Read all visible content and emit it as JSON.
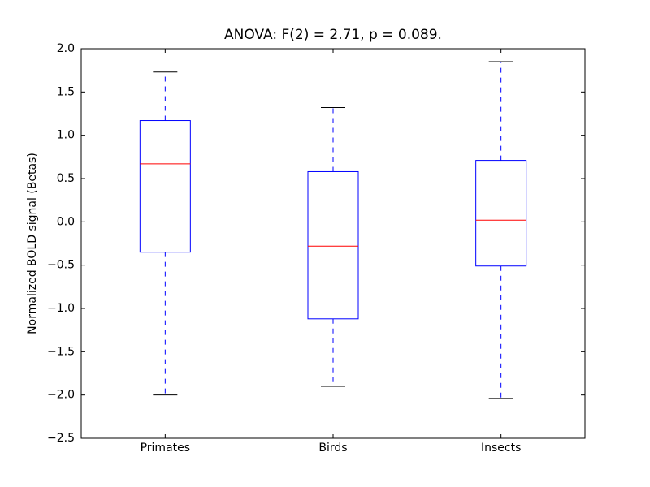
{
  "chart_data": {
    "type": "box",
    "title": "ANOVA: F(2) = 2.71, p = 0.089.",
    "ylabel": "Normalized BOLD signal (Betas)",
    "categories": [
      "Primates",
      "Birds",
      "Insects"
    ],
    "boxes": [
      {
        "whislo": -2.0,
        "q1": -0.35,
        "med": 0.67,
        "q3": 1.17,
        "whishi": 1.73
      },
      {
        "whislo": -1.9,
        "q1": -1.12,
        "med": -0.28,
        "q3": 0.58,
        "whishi": 1.32
      },
      {
        "whislo": -2.04,
        "q1": -0.51,
        "med": 0.02,
        "q3": 0.71,
        "whishi": 1.85
      }
    ],
    "box_color": "#0000ff",
    "median_color": "#ff0000",
    "ylim": [
      -2.5,
      2.0
    ],
    "yticks": [
      {
        "value": -2.5,
        "label": "−2.5"
      },
      {
        "value": -2.0,
        "label": "−2.0"
      },
      {
        "value": -1.5,
        "label": "−1.5"
      },
      {
        "value": -1.0,
        "label": "−1.0"
      },
      {
        "value": -0.5,
        "label": "−0.5"
      },
      {
        "value": 0.0,
        "label": "0.0"
      },
      0.5,
      {
        "value": 1.0,
        "label": "1.0"
      },
      1.5,
      {
        "value": 2.0,
        "label": "2.0"
      }
    ],
    "grid": false
  }
}
